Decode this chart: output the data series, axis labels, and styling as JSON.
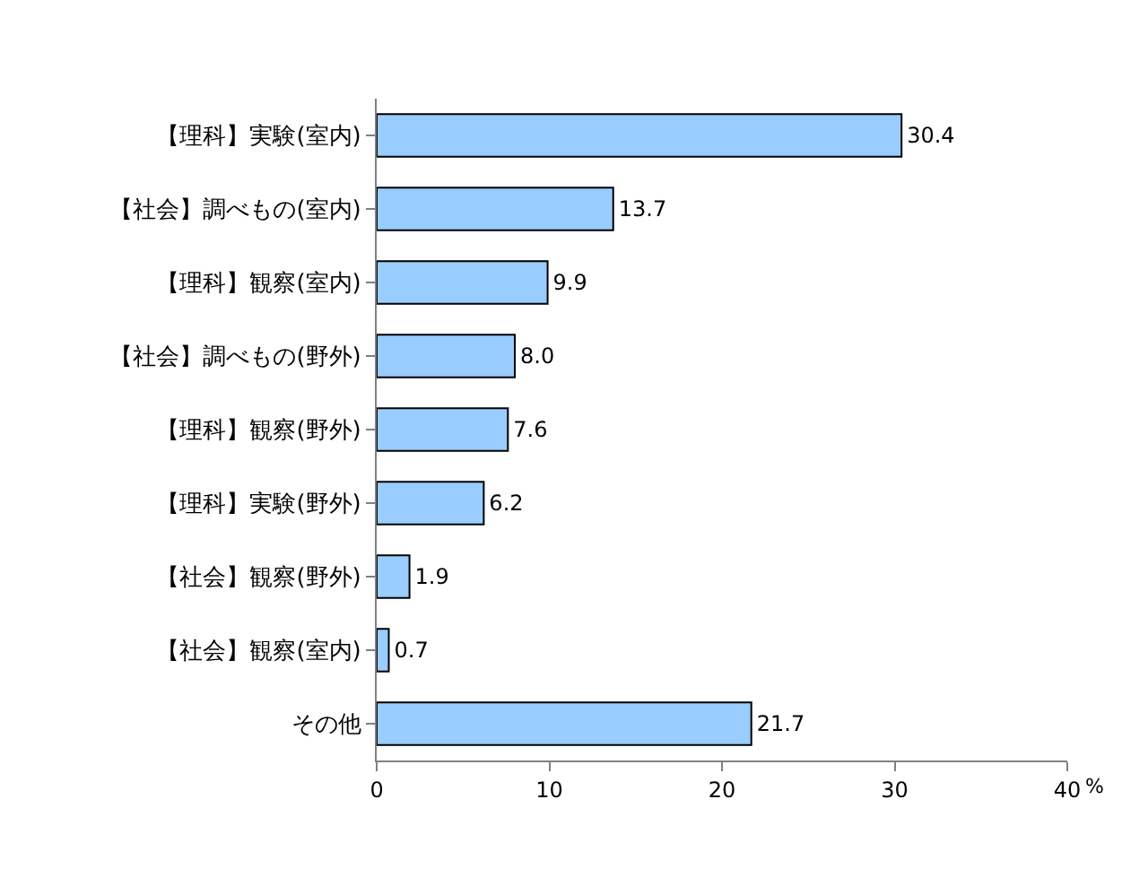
{
  "chart_data": {
    "type": "bar",
    "orientation": "horizontal",
    "categories": [
      "【理科】実験(室内)",
      "【社会】調べもの(室内)",
      "【理科】観察(室内)",
      "【社会】調べもの(野外)",
      "【理科】観察(野外)",
      "【理科】実験(野外)",
      "【社会】観察(野外)",
      "【社会】観察(室内)",
      "その他"
    ],
    "values": [
      30.4,
      13.7,
      9.9,
      8.0,
      7.6,
      6.2,
      1.9,
      0.7,
      21.7
    ],
    "value_labels": [
      "30.4",
      "13.7",
      "9.9",
      "8.0",
      "7.6",
      "6.2",
      "1.9",
      "0.7",
      "21.7"
    ],
    "color": "#99ccff",
    "xlim": [
      0,
      40
    ],
    "xticks": [
      0,
      10,
      20,
      30,
      40
    ],
    "xlabel": "%",
    "legend": false
  }
}
